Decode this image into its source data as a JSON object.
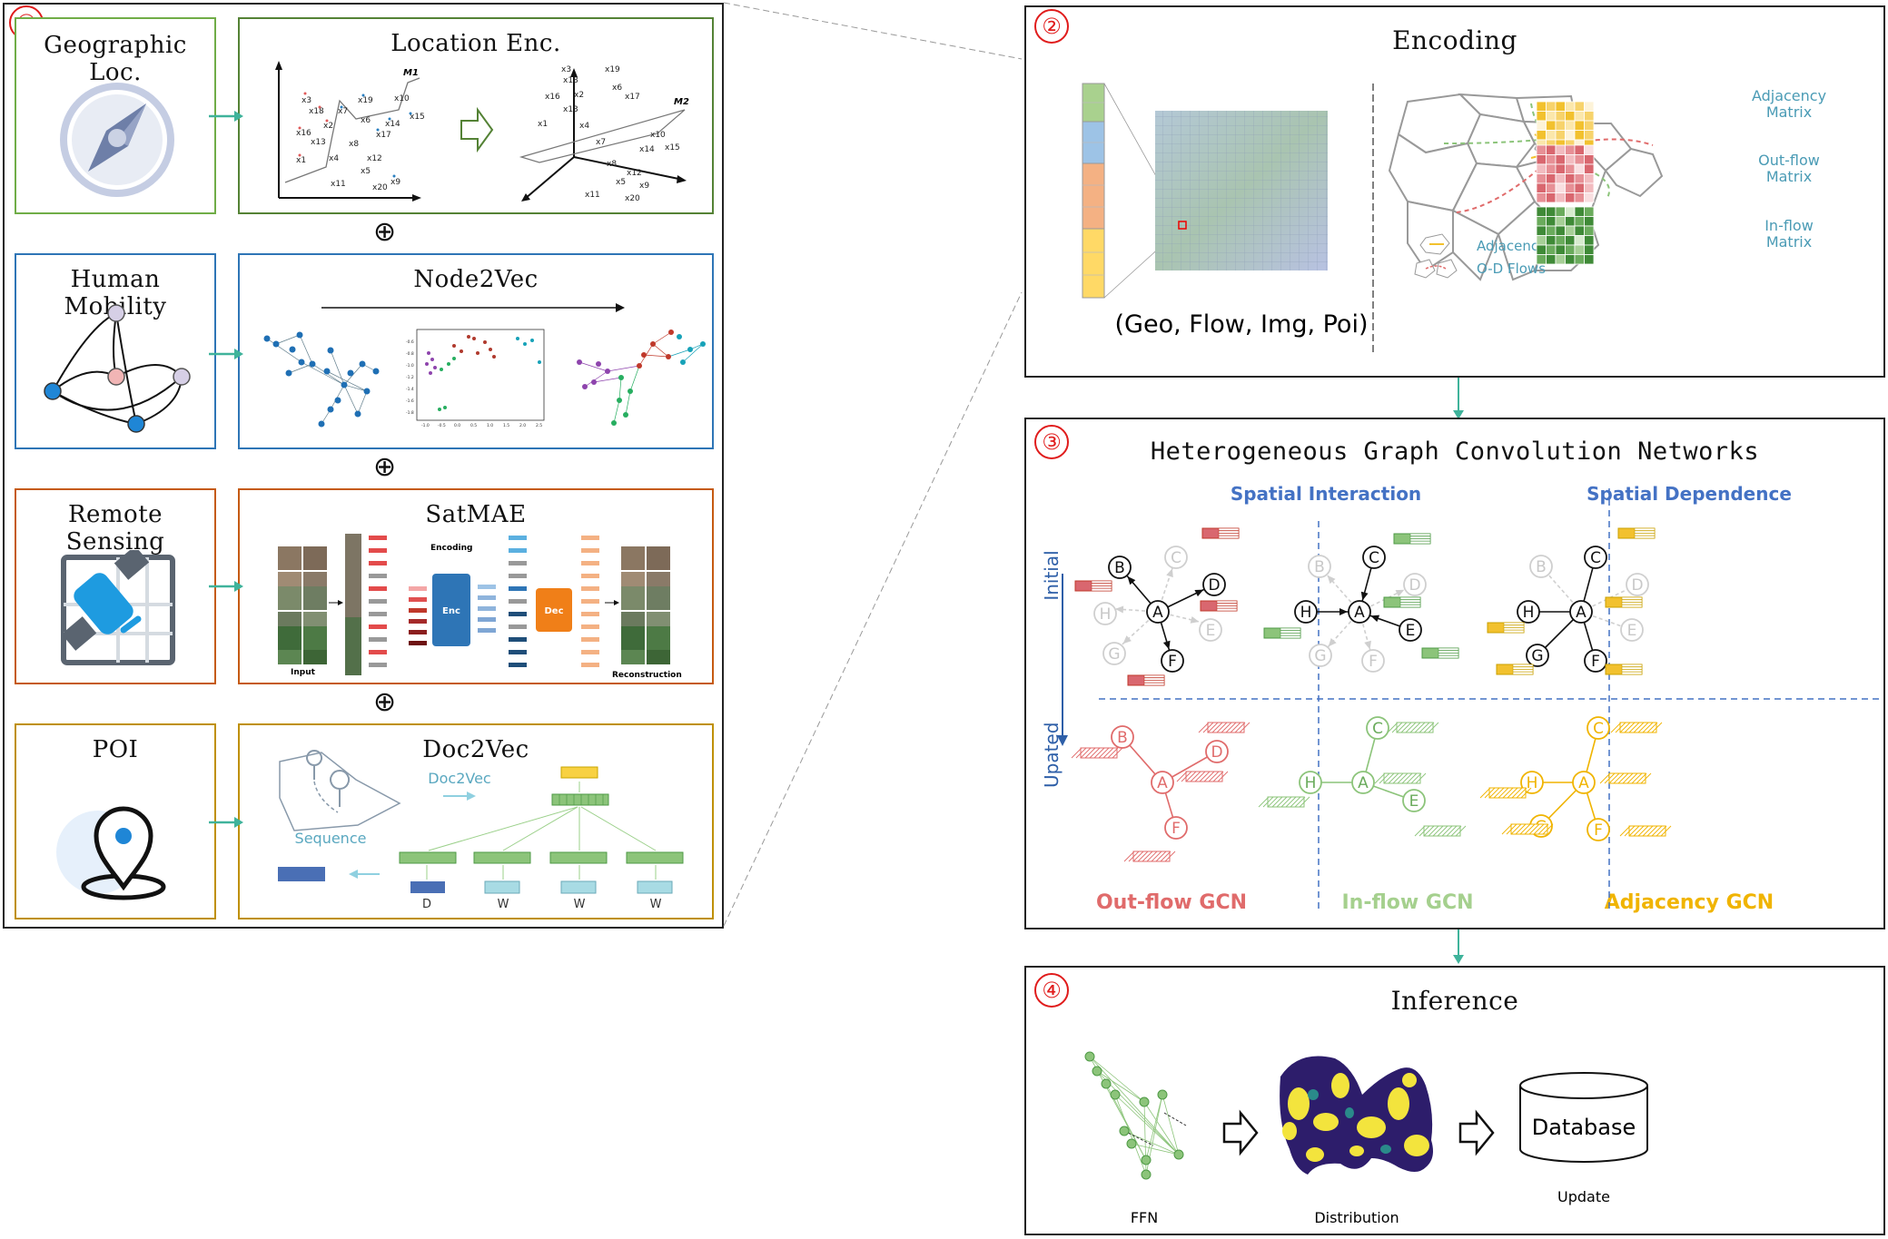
{
  "section1": {
    "number": "①",
    "rows": [
      {
        "source": "Geographic Loc.",
        "method": "Location Enc."
      },
      {
        "source": "Human Mobility",
        "method": "Node2Vec"
      },
      {
        "source": "Remote Sensing",
        "method": "SatMAE"
      },
      {
        "source": "POI",
        "method": "Doc2Vec"
      }
    ],
    "plus_symbol": "⊕",
    "location_enc": {
      "manifold1": "M1",
      "manifold2": "M2",
      "points_left": [
        "x3",
        "x18",
        "x19",
        "x10",
        "x7",
        "x2",
        "x6",
        "x15",
        "x14",
        "x16",
        "x13",
        "x17",
        "x8",
        "x12",
        "x1",
        "x4",
        "x5",
        "x11",
        "x20",
        "x9"
      ],
      "points_right": [
        "x3",
        "x18",
        "x19",
        "x16",
        "x6",
        "x2",
        "x17",
        "x13",
        "x4",
        "x1",
        "x7",
        "x10",
        "x14",
        "x15",
        "x8",
        "x12",
        "x5",
        "x9",
        "x11",
        "x20"
      ]
    },
    "node2vec": {
      "y_ticks": [
        "-0.6",
        "-0.8",
        "-1.0",
        "-1.2",
        "-1.4",
        "-1.6",
        "-1.8"
      ],
      "x_ticks": [
        "-1.0",
        "-0.5",
        "0.0",
        "0.5",
        "1.0",
        "1.5",
        "2.0",
        "2.5"
      ]
    },
    "satmae": {
      "input_label": "Input",
      "encoding_label": "Encoding",
      "enc_label": "Enc",
      "dec_label": "Dec",
      "reconstruction_label": "Reconstruction"
    },
    "doc2vec": {
      "arrow_label": "Doc2Vec",
      "sequence_label": "Sequence",
      "tokens": [
        "D",
        "W",
        "W",
        "W"
      ]
    }
  },
  "section2": {
    "number": "②",
    "title": "Encoding",
    "features_label": "(Geo, Flow, Img, Poi)",
    "legend_adjacency": "Adjacency",
    "legend_od": "O-D Flows",
    "matrices": [
      {
        "label": "Adjacency\nMatrix",
        "color": "#f2c12e"
      },
      {
        "label": "Out-flow\nMatrix",
        "color": "#d9676f"
      },
      {
        "label": "In-flow\nMatrix",
        "color": "#4e9a45"
      }
    ]
  },
  "section3": {
    "number": "③",
    "title": "Heterogeneous Graph Convolution Networks",
    "spatial_interaction": "Spatial Interaction",
    "spatial_dependence": "Spatial Dependence",
    "initial_label": "Initial",
    "updated_label": "Upated",
    "gcn_labels": [
      "Out-flow GCN",
      "In-flow GCN",
      "Adjacency GCN"
    ],
    "colors": {
      "outflow": "#e06b6b",
      "inflow": "#8cc47a",
      "adjacency": "#f0b400",
      "blue": "#4472c4"
    },
    "nodes": [
      "A",
      "B",
      "C",
      "D",
      "E",
      "F",
      "G",
      "H"
    ]
  },
  "section4": {
    "number": "④",
    "title": "Inference",
    "ffn_label": "FFN",
    "distribution_label": "Distribution",
    "database_label": "Database",
    "update_label": "Update"
  },
  "colors": {
    "green_frame": "#70ad47",
    "blue_frame": "#2e75b6",
    "orange_frame": "#c55a11",
    "gold_frame": "#bf9000",
    "teal_arrow": "#3fb39b",
    "red_number": "#e01b1b"
  }
}
